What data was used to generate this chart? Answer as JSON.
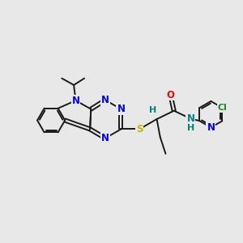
{
  "background_color": "#e8e8e8",
  "fig_size": [
    3.0,
    3.0
  ],
  "dpi": 100,
  "colors": {
    "N": "#0000ee",
    "S": "#c8b400",
    "O": "#ff0000",
    "Cl": "#228b22",
    "H": "#008080",
    "C": "#1a1a1a",
    "bond": "#1a1a1a"
  },
  "bond_lw": 1.4,
  "dbo": 0.07
}
